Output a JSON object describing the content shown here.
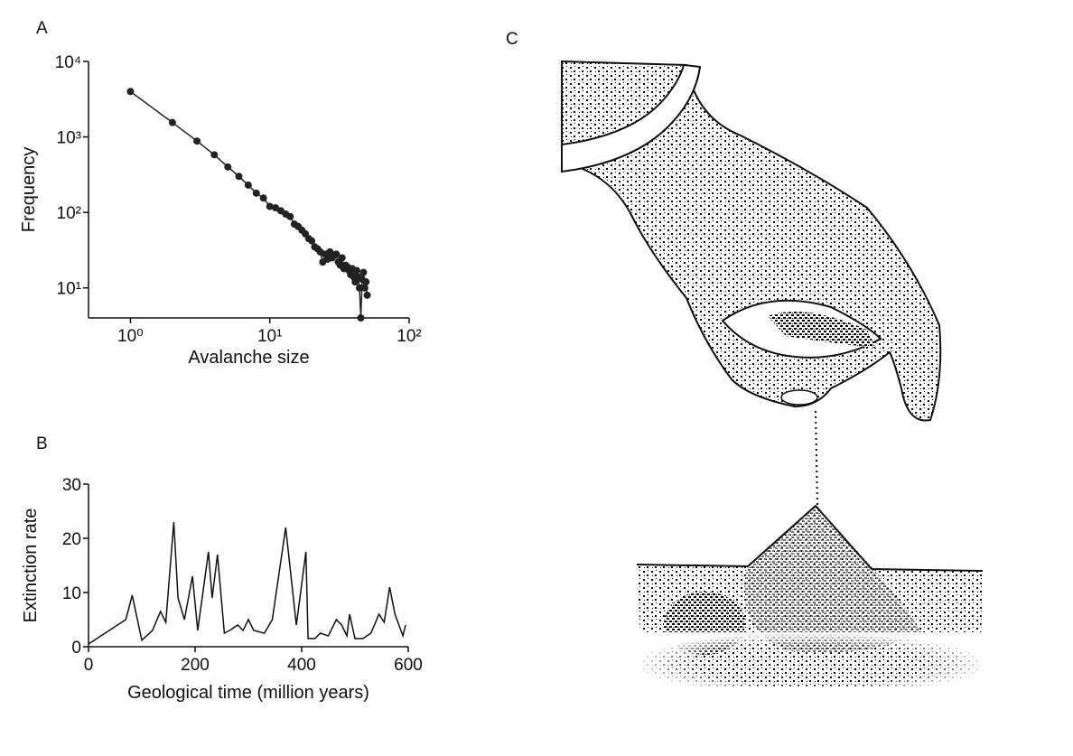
{
  "chart_data": [
    {
      "type": "line",
      "panel": "A",
      "x_label": "Avalanche size",
      "y_label": "Frequency",
      "log_x": true,
      "log_y": true,
      "markers": true,
      "color": "#222222",
      "x": [
        1,
        2,
        3,
        4,
        5,
        6,
        7,
        8,
        9,
        10,
        11,
        12,
        13,
        14,
        15,
        16,
        17,
        18,
        19,
        20,
        21,
        22,
        23,
        24,
        25,
        26,
        27,
        28,
        29,
        30,
        31,
        32,
        33,
        34,
        35,
        36,
        37,
        38,
        39,
        40,
        41,
        42,
        43,
        44,
        45,
        46,
        47,
        48,
        49,
        50
      ],
      "values": [
        4000,
        1550,
        880,
        580,
        400,
        300,
        230,
        180,
        155,
        120,
        115,
        105,
        95,
        88,
        70,
        65,
        58,
        52,
        45,
        42,
        35,
        33,
        30,
        22,
        28,
        24,
        30,
        25,
        27,
        28,
        22,
        20,
        25,
        18,
        20,
        19,
        17,
        15,
        18,
        14,
        12,
        17,
        14,
        10,
        4,
        13,
        16,
        10,
        12,
        8
      ],
      "xlim": [
        0.5,
        100
      ],
      "ylim": [
        4,
        10000
      ],
      "xticks": [
        {
          "value": 1,
          "label": "10⁰"
        },
        {
          "value": 10,
          "label": "10¹"
        },
        {
          "value": 100,
          "label": "10²"
        }
      ],
      "yticks": [
        {
          "value": 10,
          "label": "10¹"
        },
        {
          "value": 100,
          "label": "10²"
        },
        {
          "value": 1000,
          "label": "10³"
        },
        {
          "value": 10000,
          "label": "10⁴"
        }
      ]
    },
    {
      "type": "line",
      "panel": "B",
      "x_label": "Geological time (million years)",
      "y_label": "Extinction rate",
      "log_x": false,
      "log_y": false,
      "markers": false,
      "color": "#111111",
      "x": [
        0,
        70,
        82,
        100,
        120,
        135,
        145,
        160,
        168,
        180,
        195,
        205,
        225,
        232,
        242,
        255,
        265,
        280,
        290,
        300,
        310,
        330,
        345,
        370,
        390,
        408,
        412,
        425,
        435,
        450,
        465,
        475,
        485,
        490,
        500,
        515,
        530,
        545,
        555,
        565,
        575,
        590,
        595
      ],
      "values": [
        0.5,
        5,
        9.5,
        1.2,
        3,
        6.5,
        4.5,
        23,
        9,
        5,
        13,
        3,
        17.5,
        9,
        17,
        2.5,
        3,
        4,
        3,
        5,
        3,
        2.5,
        5,
        22,
        4,
        17.5,
        1.5,
        1.5,
        2.5,
        2,
        5,
        4,
        2,
        6,
        1.5,
        1.5,
        2.5,
        6,
        4.5,
        11,
        6,
        2,
        4
      ],
      "xlim": [
        0,
        600
      ],
      "ylim": [
        0,
        30
      ],
      "xticks": [
        0,
        200,
        400,
        600
      ],
      "yticks": [
        0,
        10,
        20,
        30
      ]
    }
  ],
  "illustration": {
    "label": "C"
  }
}
